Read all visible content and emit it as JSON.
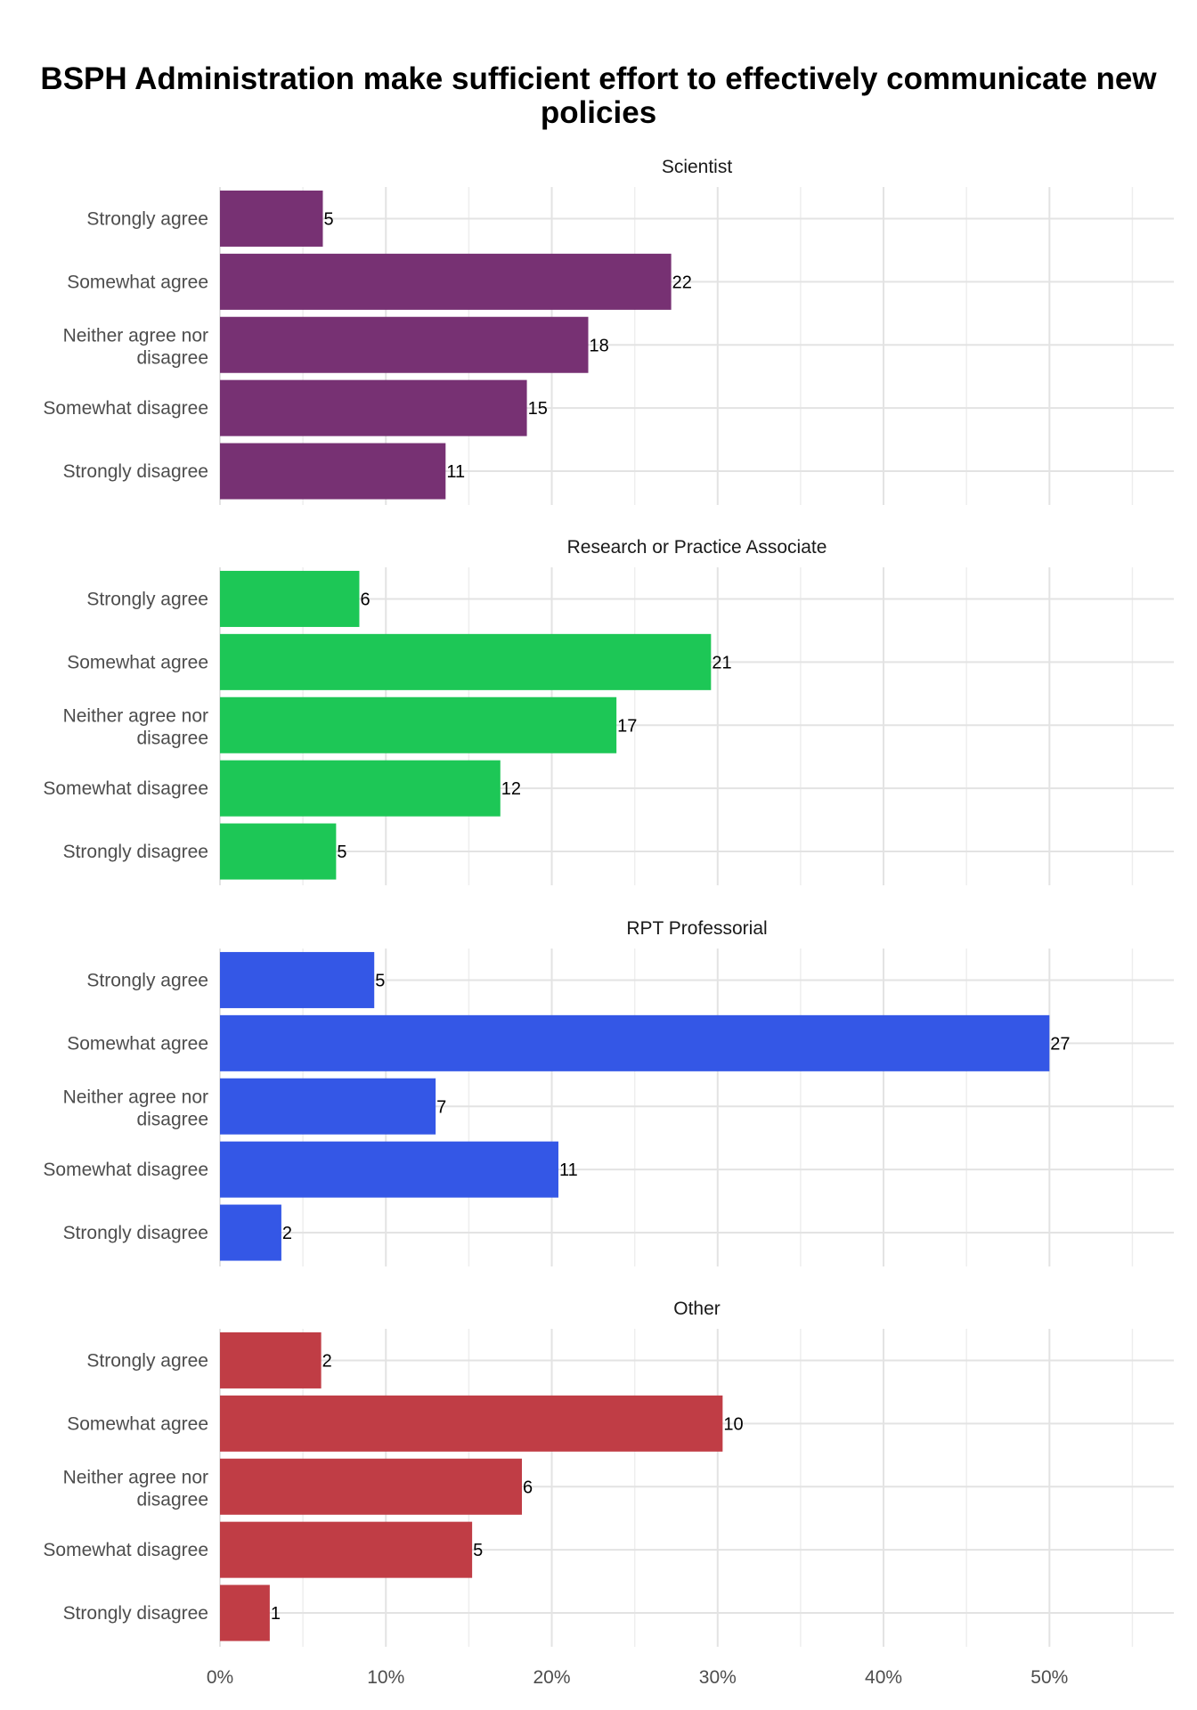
{
  "chart_data": {
    "type": "bar",
    "orientation": "horizontal",
    "title": "BSPH Administration make sufficient effort to effectively communicate new policies",
    "xlabel": "",
    "ylabel": "",
    "xlim": [
      0,
      57.5
    ],
    "x_ticks": [
      0,
      10,
      20,
      30,
      40,
      50
    ],
    "x_tick_labels": [
      "0%",
      "10%",
      "20%",
      "30%",
      "40%",
      "50%"
    ],
    "categories": [
      "Strongly agree",
      "Somewhat agree",
      "Neither agree nor disagree",
      "Somewhat disagree",
      "Strongly disagree"
    ],
    "grid": true,
    "legend": "none",
    "panels": [
      {
        "name": "Scientist",
        "color": "#773173",
        "counts": [
          5,
          22,
          18,
          15,
          11
        ],
        "percents": [
          6.2,
          27.2,
          22.2,
          18.5,
          13.6
        ]
      },
      {
        "name": "Research or Practice Associate",
        "color": "#1dc756",
        "counts": [
          6,
          21,
          17,
          12,
          5
        ],
        "percents": [
          8.4,
          29.6,
          23.9,
          16.9,
          7.0
        ]
      },
      {
        "name": "RPT Professorial",
        "color": "#3457e6",
        "counts": [
          5,
          27,
          7,
          11,
          2
        ],
        "percents": [
          9.3,
          50.0,
          13.0,
          20.4,
          3.7
        ]
      },
      {
        "name": "Other",
        "color": "#c03d45",
        "counts": [
          2,
          10,
          6,
          5,
          1
        ],
        "percents": [
          6.1,
          30.3,
          18.2,
          15.2,
          3.0
        ]
      }
    ]
  }
}
